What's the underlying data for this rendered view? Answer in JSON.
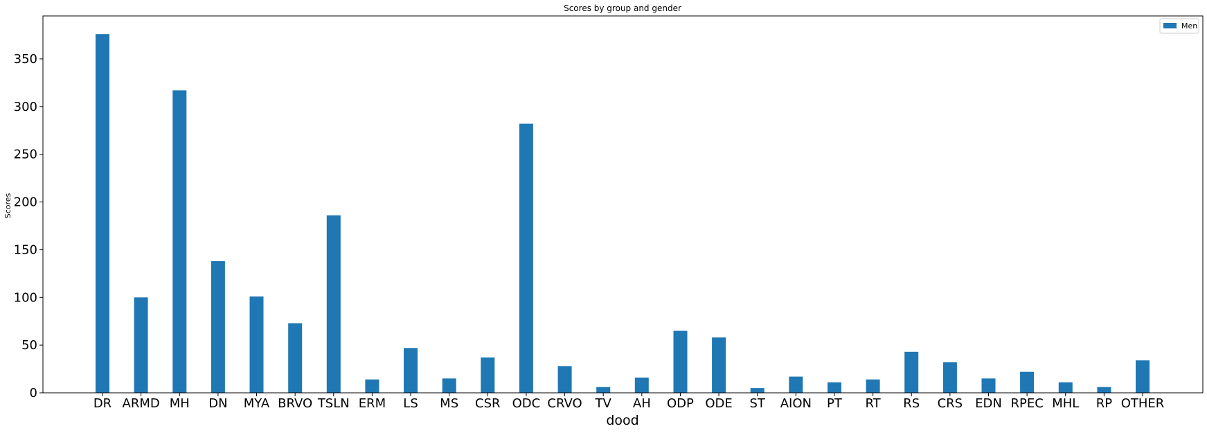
{
  "chart_data": {
    "type": "bar",
    "title": "Scores by group and gender",
    "xlabel": "dood",
    "ylabel": "Scores",
    "categories": [
      "DR",
      "ARMD",
      "MH",
      "DN",
      "MYA",
      "BRVO",
      "TSLN",
      "ERM",
      "LS",
      "MS",
      "CSR",
      "ODC",
      "CRVO",
      "TV",
      "AH",
      "ODP",
      "ODE",
      "ST",
      "AION",
      "PT",
      "RT",
      "RS",
      "CRS",
      "EDN",
      "RPEC",
      "MHL",
      "RP",
      "OTHER"
    ],
    "series": [
      {
        "name": "Men",
        "color": "#1f77b4",
        "values": [
          376,
          100,
          317,
          138,
          101,
          73,
          186,
          14,
          47,
          15,
          37,
          282,
          28,
          6,
          16,
          65,
          58,
          5,
          17,
          11,
          14,
          43,
          32,
          15,
          22,
          11,
          6,
          34
        ]
      }
    ],
    "ylim": [
      0,
      395
    ],
    "yticks": [
      0,
      50,
      100,
      150,
      200,
      250,
      300,
      350
    ],
    "grid": false,
    "legend_position": "top-right"
  }
}
